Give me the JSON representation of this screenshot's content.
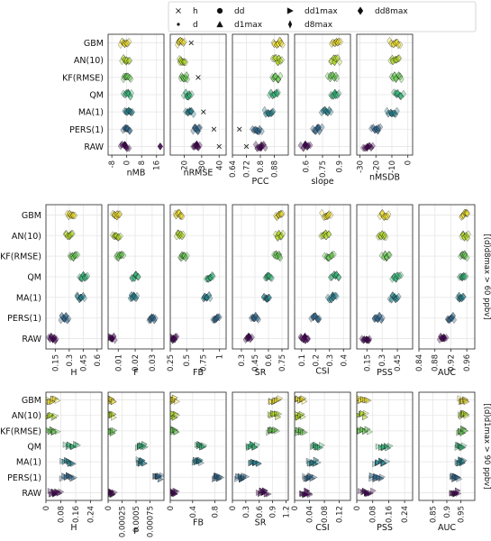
{
  "chart_data": {
    "type": "scatter",
    "categories": [
      "GBM",
      "AN(10)",
      "KF(RMSE)",
      "QM",
      "MA(1)",
      "PERS(1)",
      "RAW"
    ],
    "legend": {
      "placement": "top-center",
      "entries": [
        {
          "name": "h",
          "marker": "x"
        },
        {
          "name": "d",
          "marker": "dot"
        },
        {
          "name": "dd",
          "marker": "circle"
        },
        {
          "name": "d1max",
          "marker": "triangle-up"
        },
        {
          "name": "dd1max",
          "marker": "triangle-right"
        },
        {
          "name": "d8max",
          "marker": "diamond-thin"
        },
        {
          "name": "dd8max",
          "marker": "diamond"
        }
      ]
    },
    "category_colors": [
      "#f0e030",
      "#b5de2b",
      "#6ece58",
      "#35b779",
      "#26828e",
      "#31688e",
      "#440154"
    ],
    "grid": true,
    "rows": [
      {
        "side_label": "",
        "panels": [
          {
            "xlabel": "nMB",
            "xlim": [
              -10,
              20
            ],
            "ticks": [
              -8,
              0,
              8,
              16
            ],
            "tick_labels": [
              "-8",
              "0",
              "8",
              "16"
            ],
            "marker": "diamond",
            "means": [
              -1,
              -0.5,
              0,
              0.5,
              1,
              0,
              -1
            ],
            "spread": 2,
            "extras": [
              {
                "cat": 6,
                "x": 18,
                "marker": "diamond"
              }
            ]
          },
          {
            "xlabel": "nRMSE",
            "xlim": [
              12,
              44
            ],
            "ticks": [
              20,
              30,
              40
            ],
            "tick_labels": [
              "20",
              "30",
              "40"
            ],
            "marker": "diamond",
            "means": [
              18,
              19,
              20,
              22,
              23,
              27,
              27
            ],
            "spread": 2,
            "extras": [
              {
                "cat": 0,
                "x": 24,
                "marker": "x"
              },
              {
                "cat": 2,
                "x": 28,
                "marker": "x"
              },
              {
                "cat": 4,
                "x": 31,
                "marker": "x"
              },
              {
                "cat": 5,
                "x": 37,
                "marker": "x"
              },
              {
                "cat": 6,
                "x": 40,
                "marker": "x"
              }
            ]
          },
          {
            "xlabel": "PCC",
            "xlim": [
              0.64,
              0.96
            ],
            "ticks": [
              0.64,
              0.72,
              0.8,
              0.88
            ],
            "tick_labels": [
              "0.64",
              "0.72",
              "0.8",
              "0.88"
            ],
            "marker": "diamond",
            "means": [
              0.9,
              0.9,
              0.89,
              0.88,
              0.85,
              0.78,
              0.8
            ],
            "spread": 0.025,
            "extras": [
              {
                "cat": 5,
                "x": 0.68,
                "marker": "x"
              },
              {
                "cat": 6,
                "x": 0.72,
                "marker": "x"
              }
            ]
          },
          {
            "xlabel": "slope",
            "xlim": [
              0.5,
              1.0
            ],
            "ticks": [
              0.6,
              0.75,
              0.9
            ],
            "tick_labels": [
              "0.6",
              "0.75",
              "0.9"
            ],
            "marker": "diamond",
            "means": [
              0.87,
              0.86,
              0.84,
              0.86,
              0.78,
              0.7,
              0.6
            ],
            "spread": 0.04,
            "extras": []
          },
          {
            "xlabel": "nMSDB",
            "xlim": [
              -32,
              3
            ],
            "ticks": [
              -30,
              -20,
              -10,
              0
            ],
            "tick_labels": [
              "-30",
              "-20",
              "-10",
              "0"
            ],
            "marker": "diamond",
            "means": [
              -8,
              -8,
              -7,
              -6,
              -10,
              -20,
              -25
            ],
            "spread": 3,
            "extras": []
          }
        ]
      },
      {
        "side_label": "[(d)d8max > 60 ppbv]",
        "panels": [
          {
            "xlabel": "H",
            "xlim": [
              0.05,
              0.65
            ],
            "ticks": [
              0.15,
              0.3,
              0.45,
              0.6
            ],
            "tick_labels": [
              "0.15",
              "0.3",
              "0.45",
              "0.6"
            ],
            "marker": "diamond",
            "means": [
              0.32,
              0.3,
              0.35,
              0.45,
              0.42,
              0.25,
              0.12
            ],
            "spread": 0.04,
            "extras": []
          },
          {
            "xlabel": "F",
            "xlim": [
              0.004,
              0.037
            ],
            "ticks": [
              0.01,
              0.02,
              0.03
            ],
            "tick_labels": [
              "0.01",
              "0.02",
              "0.03"
            ],
            "marker": "diamond",
            "means": [
              0.009,
              0.009,
              0.011,
              0.02,
              0.019,
              0.03,
              0.006
            ],
            "spread": 0.002,
            "extras": []
          },
          {
            "xlabel": "FB",
            "xlim": [
              0.25,
              1.1
            ],
            "ticks": [
              0.25,
              0.5,
              0.75,
              1.0
            ],
            "tick_labels": [
              "0.25",
              "0.5",
              "0.75",
              "1"
            ],
            "marker": "diamond",
            "means": [
              0.38,
              0.4,
              0.45,
              0.85,
              0.8,
              0.95,
              0.3
            ],
            "spread": 0.05,
            "extras": []
          },
          {
            "xlabel": "SR",
            "xlim": [
              0.2,
              0.82
            ],
            "ticks": [
              0.3,
              0.45,
              0.6,
              0.75
            ],
            "tick_labels": [
              "0.3",
              "0.45",
              "0.6",
              "0.75"
            ],
            "marker": "diamond",
            "means": [
              0.72,
              0.72,
              0.7,
              0.6,
              0.58,
              0.45,
              0.38
            ],
            "spread": 0.035,
            "extras": []
          },
          {
            "xlabel": "CSI",
            "xlim": [
              0.05,
              0.45
            ],
            "ticks": [
              0.1,
              0.2,
              0.3,
              0.4
            ],
            "tick_labels": [
              "0.1",
              "0.2",
              "0.3",
              "0.4"
            ],
            "marker": "diamond",
            "means": [
              0.28,
              0.27,
              0.3,
              0.34,
              0.32,
              0.2,
              0.12
            ],
            "spread": 0.03,
            "extras": []
          },
          {
            "xlabel": "PSS",
            "xlim": [
              0.05,
              0.6
            ],
            "ticks": [
              0.15,
              0.3,
              0.45
            ],
            "tick_labels": [
              "0.15",
              "0.3",
              "0.45"
            ],
            "marker": "diamond",
            "means": [
              0.32,
              0.3,
              0.34,
              0.44,
              0.42,
              0.26,
              0.14
            ],
            "spread": 0.04,
            "extras": []
          },
          {
            "xlabel": "AUC",
            "xlim": [
              0.84,
              0.98
            ],
            "ticks": [
              0.84,
              0.88,
              0.92,
              0.96
            ],
            "tick_labels": [
              "0.84",
              "0.88",
              "0.92",
              "0.96"
            ],
            "marker": "diamond",
            "means": [
              0.955,
              0.955,
              0.952,
              0.95,
              0.945,
              0.92,
              0.9
            ],
            "spread": 0.008,
            "extras": []
          }
        ]
      },
      {
        "side_label": "[(d)d1max > 90 ppbv]",
        "panels": [
          {
            "xlabel": "H",
            "xlim": [
              0,
              0.3
            ],
            "ticks": [
              0,
              0.08,
              0.16,
              0.24
            ],
            "tick_labels": [
              "0",
              "0.08",
              "0.16",
              "0.24"
            ],
            "marker": "triangle-right",
            "means": [
              0.03,
              0.02,
              0.03,
              0.14,
              0.12,
              0.12,
              0.05
            ],
            "spread": 0.03,
            "extras": []
          },
          {
            "xlabel": "F",
            "xlim": [
              0,
              0.001
            ],
            "ticks": [
              0,
              0.00025,
              0.0005,
              0.00075
            ],
            "tick_labels": [
              "0",
              "0.00025",
              "0.0005",
              "0.00075"
            ],
            "marker": "triangle-right",
            "means": [
              5e-05,
              5e-05,
              5e-05,
              0.0006,
              0.0006,
              0.0009,
              5e-05
            ],
            "spread": 6e-05,
            "extras": []
          },
          {
            "xlabel": "FB",
            "xlim": [
              0,
              1.0
            ],
            "ticks": [
              0,
              0.4,
              0.8
            ],
            "tick_labels": [
              "0",
              "0.4",
              "0.8"
            ],
            "marker": "triangle-right",
            "means": [
              0.05,
              0.05,
              0.06,
              0.55,
              0.5,
              0.85,
              0.06
            ],
            "spread": 0.06,
            "extras": []
          },
          {
            "xlabel": "SR",
            "xlim": [
              0,
              1.25
            ],
            "ticks": [
              0,
              0.3,
              0.6,
              0.9,
              1.2
            ],
            "tick_labels": [
              "0",
              "0.3",
              "0.6",
              "0.9",
              "1.2"
            ],
            "marker": "triangle-right",
            "means": [
              0.95,
              0.95,
              0.9,
              0.45,
              0.5,
              0.2,
              0.7
            ],
            "spread": 0.1,
            "extras": []
          },
          {
            "xlabel": "CSI",
            "xlim": [
              0,
              0.15
            ],
            "ticks": [
              0,
              0.04,
              0.08,
              0.12
            ],
            "tick_labels": [
              "0",
              "0.04",
              "0.08",
              "0.12"
            ],
            "marker": "triangle-right",
            "means": [
              0.015,
              0.01,
              0.015,
              0.06,
              0.05,
              0.04,
              0.03
            ],
            "spread": 0.012,
            "extras": []
          },
          {
            "xlabel": "PSS",
            "xlim": [
              0,
              0.28
            ],
            "ticks": [
              0,
              0.08,
              0.16,
              0.24
            ],
            "tick_labels": [
              "0",
              "0.08",
              "0.16",
              "0.24"
            ],
            "marker": "triangle-right",
            "means": [
              0.03,
              0.02,
              0.03,
              0.14,
              0.12,
              0.1,
              0.05
            ],
            "spread": 0.03,
            "extras": []
          },
          {
            "xlabel": "AUC",
            "xlim": [
              0.8,
              1.0
            ],
            "ticks": [
              0.85,
              0.9,
              0.95
            ],
            "tick_labels": [
              "0.85",
              "0.9",
              "0.95"
            ],
            "marker": "triangle-right",
            "means": [
              0.96,
              0.96,
              0.955,
              0.95,
              0.95,
              0.93,
              0.93
            ],
            "spread": 0.012,
            "extras": []
          }
        ]
      }
    ]
  }
}
